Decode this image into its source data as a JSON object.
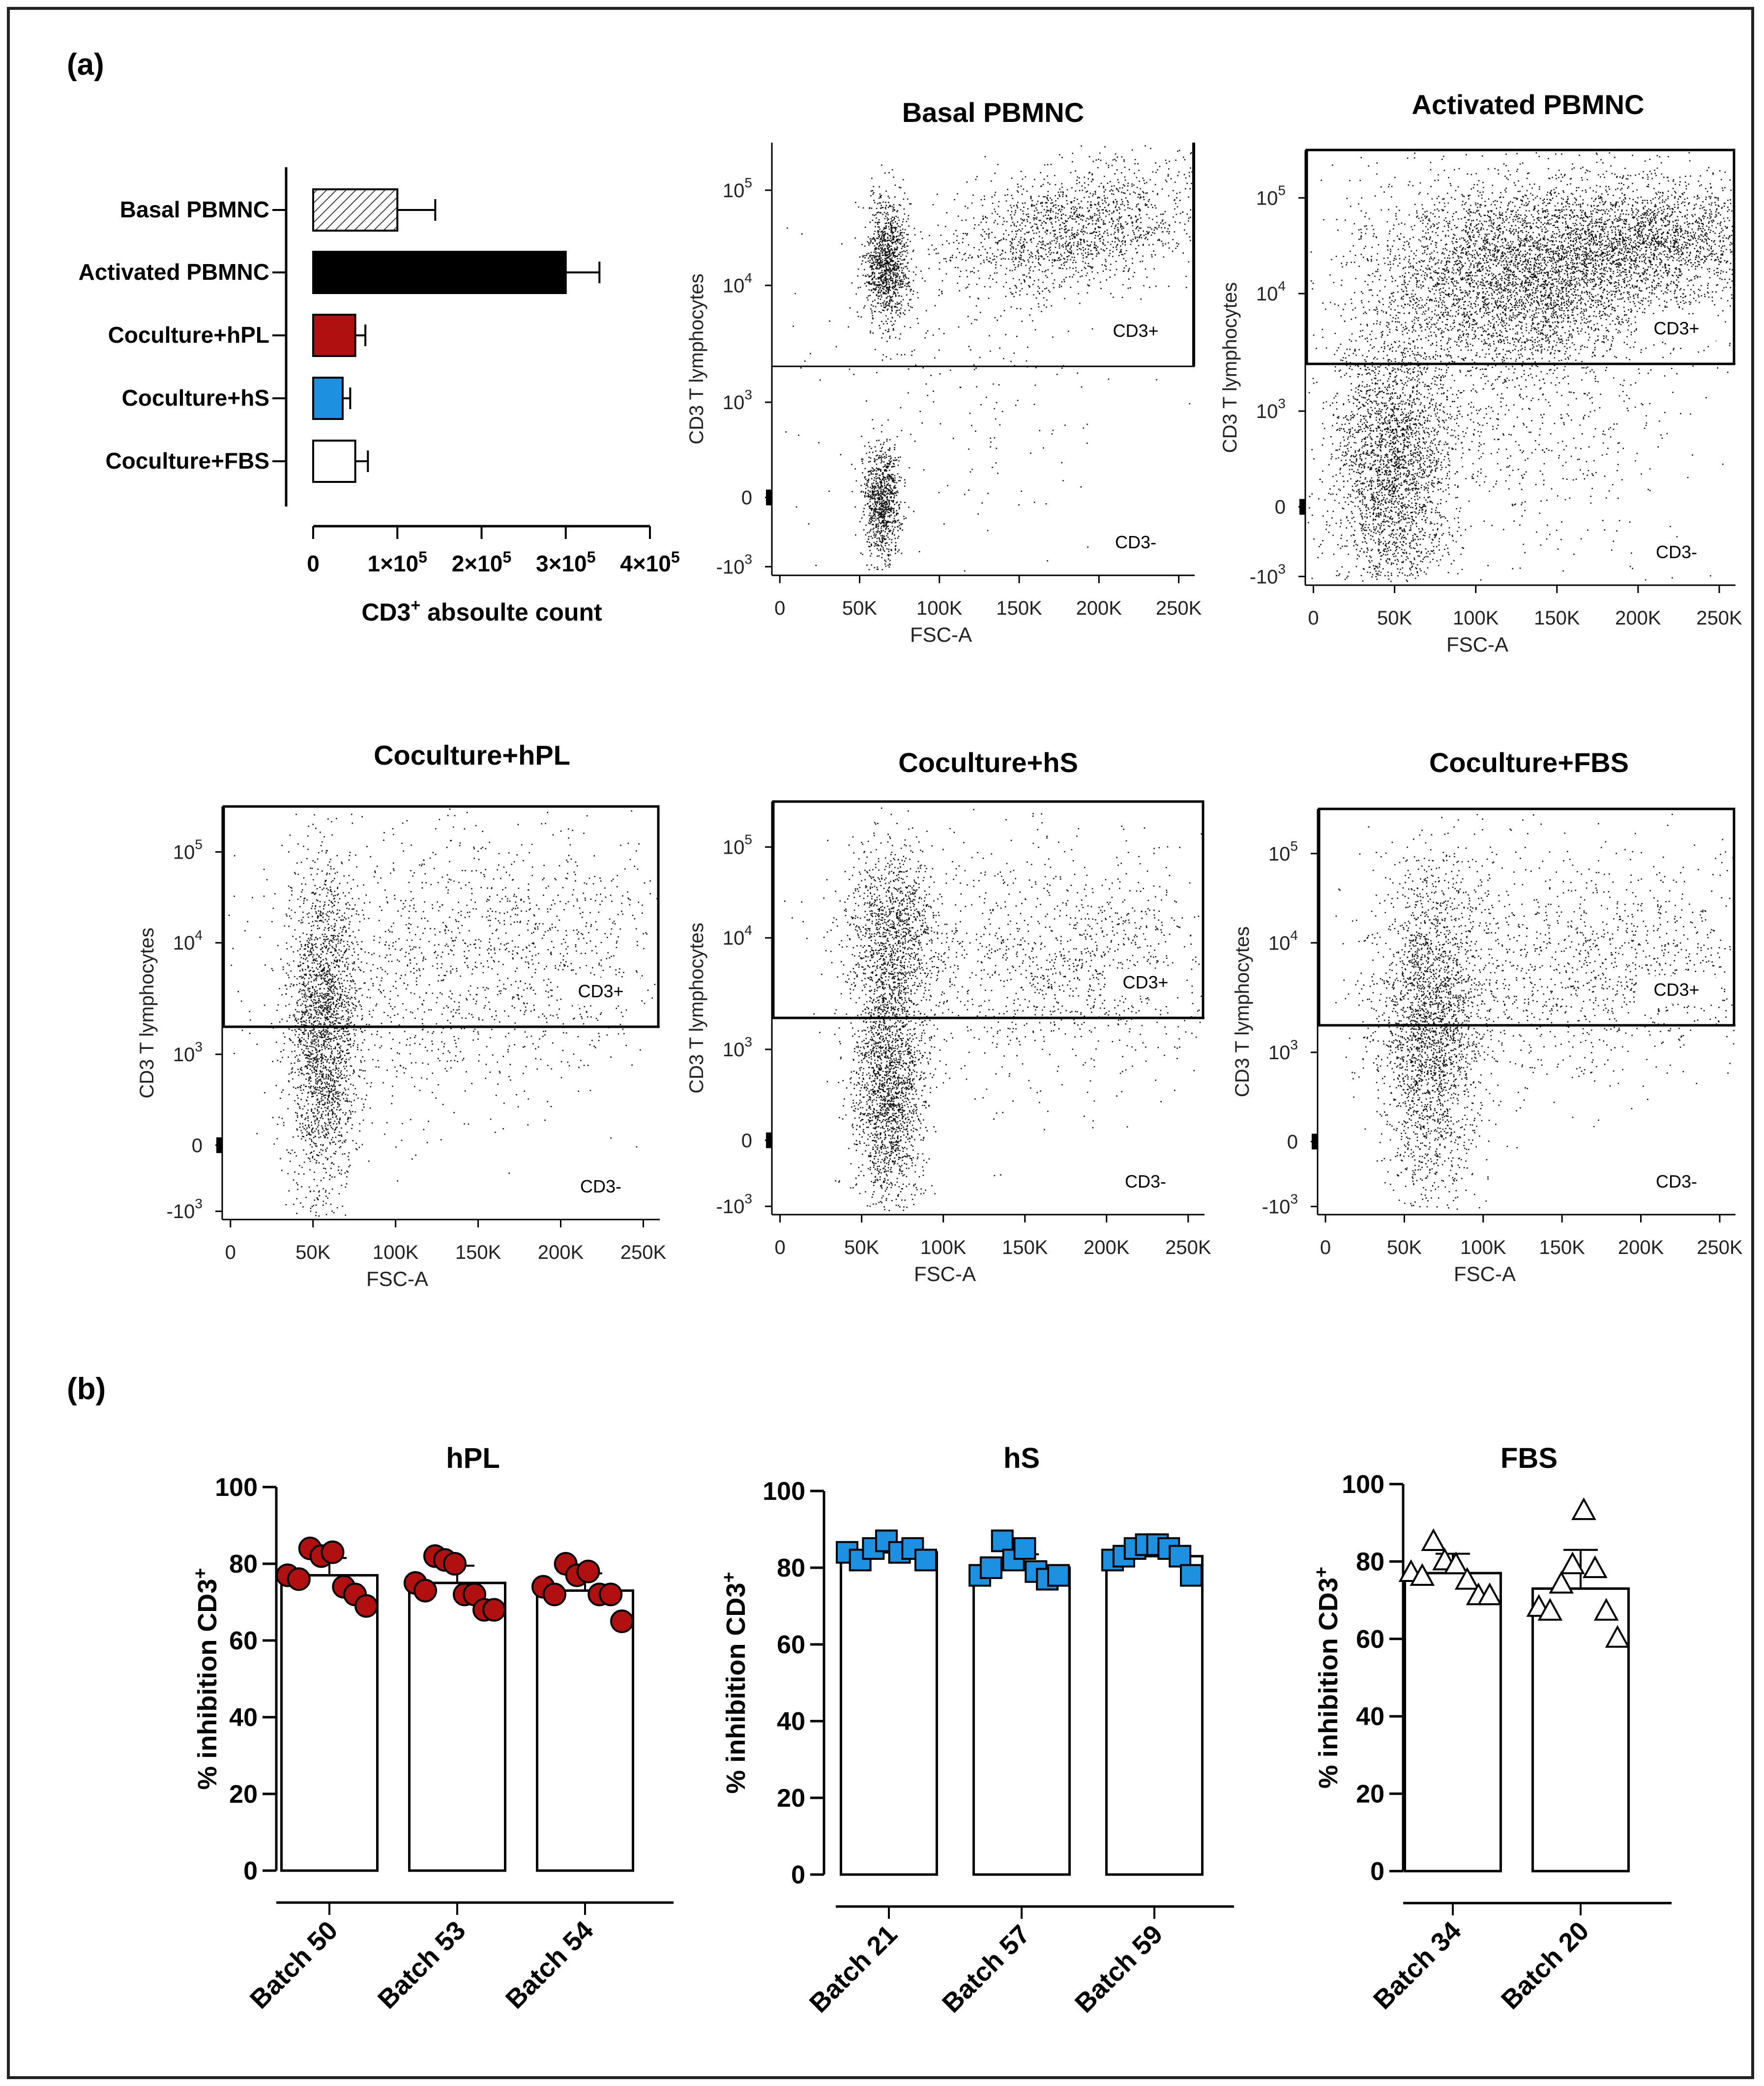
{
  "panel_labels": {
    "a": "(a)",
    "b": "(b)"
  },
  "chart_data": [
    {
      "id": "cd3-count",
      "type": "bar",
      "orientation": "horizontal",
      "xlabel_main": "CD3",
      "xlabel_sup": "+",
      "xlabel_rest": " absoulte count",
      "xticks": [
        {
          "v": 0,
          "base": "0",
          "exp": ""
        },
        {
          "v": 100000,
          "base": "1×10",
          "exp": "5"
        },
        {
          "v": 200000,
          "base": "2×10",
          "exp": "5"
        },
        {
          "v": 300000,
          "base": "3×10",
          "exp": "5"
        },
        {
          "v": 400000,
          "base": "4×10",
          "exp": "5"
        }
      ],
      "xlim": [
        0,
        400000
      ],
      "categories": [
        "Basal PBMNC",
        "Activated PBMNC",
        "Coculture+hPL",
        "Coculture+hS",
        "Coculture+FBS"
      ],
      "values": [
        100000,
        300000,
        50000,
        35000,
        50000
      ],
      "errors": [
        45000,
        40000,
        12000,
        9000,
        15000
      ],
      "colors": [
        "hatched",
        "#000000",
        "#b01010",
        "#1e90e0",
        "#ffffff"
      ]
    },
    {
      "id": "flow-basal",
      "type": "scatter",
      "title": "Basal PBMNC",
      "xlabel": "FSC-A",
      "ylabel": "CD3 T lymphocytes",
      "xticks": [
        "0",
        "50K",
        "100K",
        "150K",
        "200K",
        "250K"
      ],
      "yticks": [
        {
          "base": "10",
          "exp": "5"
        },
        {
          "base": "10",
          "exp": "4"
        },
        {
          "base": "10",
          "exp": "3"
        },
        {
          "base": "0",
          "exp": ""
        },
        {
          "base": "-10",
          "exp": "3"
        }
      ],
      "gate_pos": "CD3+",
      "gate_neg": "CD3-"
    },
    {
      "id": "flow-activated",
      "type": "scatter",
      "title": "Activated PBMNC",
      "xlabel": "FSC-A",
      "ylabel": "CD3 T lymphocytes",
      "xticks": [
        "0",
        "50K",
        "100K",
        "150K",
        "200K",
        "250K"
      ],
      "yticks": [
        {
          "base": "10",
          "exp": "5"
        },
        {
          "base": "10",
          "exp": "4"
        },
        {
          "base": "10",
          "exp": "3"
        },
        {
          "base": "0",
          "exp": ""
        },
        {
          "base": "-10",
          "exp": "3"
        }
      ],
      "gate_pos": "CD3+",
      "gate_neg": "CD3-"
    },
    {
      "id": "flow-hpl",
      "type": "scatter",
      "title": "Coculture+hPL",
      "xlabel": "FSC-A",
      "ylabel": "CD3 T lymphocytes",
      "xticks": [
        "0",
        "50K",
        "100K",
        "150K",
        "200K",
        "250K"
      ],
      "yticks": [
        {
          "base": "10",
          "exp": "5"
        },
        {
          "base": "10",
          "exp": "4"
        },
        {
          "base": "10",
          "exp": "3"
        },
        {
          "base": "0",
          "exp": ""
        },
        {
          "base": "-10",
          "exp": "3"
        }
      ],
      "gate_pos": "CD3+",
      "gate_neg": "CD3-"
    },
    {
      "id": "flow-hs",
      "type": "scatter",
      "title": "Coculture+hS",
      "xlabel": "FSC-A",
      "ylabel": "CD3 T lymphocytes",
      "xticks": [
        "0",
        "50K",
        "100K",
        "150K",
        "200K",
        "250K"
      ],
      "yticks": [
        {
          "base": "10",
          "exp": "5"
        },
        {
          "base": "10",
          "exp": "4"
        },
        {
          "base": "10",
          "exp": "3"
        },
        {
          "base": "0",
          "exp": ""
        },
        {
          "base": "-10",
          "exp": "3"
        }
      ],
      "gate_pos": "CD3+",
      "gate_neg": "CD3-"
    },
    {
      "id": "flow-fbs",
      "type": "scatter",
      "title": "Coculture+FBS",
      "xlabel": "FSC-A",
      "ylabel": "CD3 T lymphocytes",
      "xticks": [
        "0",
        "50K",
        "100K",
        "150K",
        "200K",
        "250K"
      ],
      "yticks": [
        {
          "base": "10",
          "exp": "5"
        },
        {
          "base": "10",
          "exp": "4"
        },
        {
          "base": "10",
          "exp": "3"
        },
        {
          "base": "0",
          "exp": ""
        },
        {
          "base": "-10",
          "exp": "3"
        }
      ],
      "gate_pos": "CD3+",
      "gate_neg": "CD3-"
    },
    {
      "id": "inhibition-hpl",
      "type": "bar",
      "title": "hPL",
      "ylabel_main": "% inhibition CD3",
      "ylabel_sup": "+",
      "ylim": [
        0,
        100
      ],
      "yticks": [
        "0",
        "20",
        "40",
        "60",
        "80",
        "100"
      ],
      "categories": [
        "Batch 50",
        "Batch 53",
        "Batch 54"
      ],
      "values": [
        77,
        75,
        73
      ],
      "errors": [
        4.5,
        4.5,
        4.5
      ],
      "points": [
        [
          77,
          76,
          84,
          82,
          83,
          74,
          72,
          69
        ],
        [
          75,
          73,
          82,
          81,
          80,
          72,
          72,
          68,
          68
        ],
        [
          74,
          72,
          80,
          77,
          78,
          72,
          72,
          65
        ]
      ],
      "marker": "circle",
      "color": "#b01010"
    },
    {
      "id": "inhibition-hs",
      "type": "bar",
      "title": "hS",
      "ylabel_main": "% inhibition CD3",
      "ylabel_sup": "+",
      "ylim": [
        0,
        100
      ],
      "yticks": [
        "0",
        "20",
        "40",
        "60",
        "80",
        "100"
      ],
      "categories": [
        "Batch 21",
        "Batch 57",
        "Batch 59"
      ],
      "values": [
        84,
        80,
        83
      ],
      "errors": [
        2.5,
        3.5,
        2.5
      ],
      "points": [
        [
          84,
          82,
          85,
          87,
          84,
          85,
          82
        ],
        [
          78,
          80,
          87,
          82,
          85,
          79,
          77,
          78
        ],
        [
          82,
          83,
          85,
          86,
          86,
          85,
          83,
          78
        ]
      ],
      "marker": "square",
      "color": "#1e90e0"
    },
    {
      "id": "inhibition-fbs",
      "type": "bar",
      "title": "FBS",
      "ylabel_main": "% inhibition CD3",
      "ylabel_sup": "+",
      "ylim": [
        0,
        100
      ],
      "yticks": [
        "0",
        "20",
        "40",
        "60",
        "80",
        "100"
      ],
      "categories": [
        "Batch 34",
        "Batch 20"
      ],
      "values": [
        77,
        73
      ],
      "errors": [
        5,
        10
      ],
      "points": [
        [
          77,
          76,
          85,
          80,
          79,
          75,
          71,
          71
        ],
        [
          68,
          67,
          74,
          79,
          93,
          78,
          67,
          60
        ]
      ],
      "marker": "triangle",
      "color": "#ffffff"
    }
  ]
}
